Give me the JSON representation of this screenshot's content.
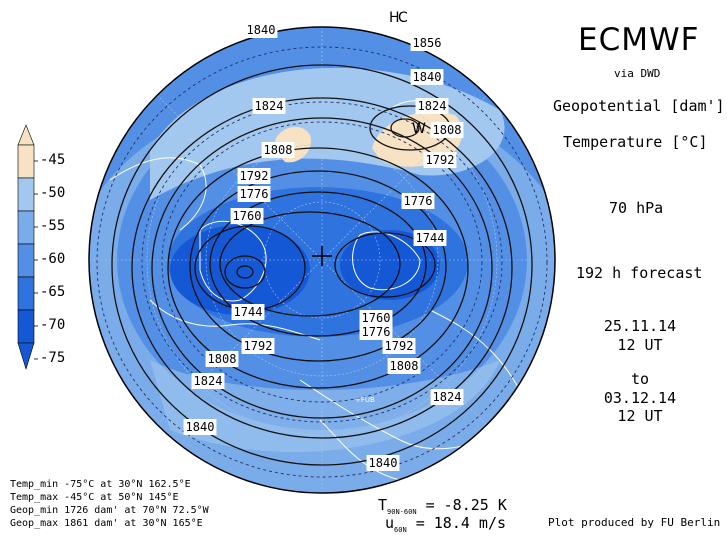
{
  "header": {
    "title": "ECMWF",
    "source": "via DWD",
    "field1": "Geopotential [dam']",
    "field2": "Temperature [°C]",
    "level": "70 hPa",
    "forecast": "192 h forecast",
    "init_date": "25.11.14",
    "init_time": "12 UT",
    "to": "to",
    "valid_date": "03.12.14",
    "valid_time": "12 UT"
  },
  "colorbar": {
    "ticks": [
      "-45",
      "-50",
      "-55",
      "-60",
      "-65",
      "-70",
      "-75"
    ],
    "colors": [
      "#f7e2c4",
      "#cfe3f6",
      "#a3c8ef",
      "#7bacea",
      "#5390e5",
      "#2f73de",
      "#1558d6"
    ]
  },
  "stats": [
    "Temp_min -75°C at 30°N 162.5°E",
    "Temp_max -45°C at 50°N 145°E",
    "Geop_min 1726 dam' at 70°N 72.5°W",
    "Geop_max 1861 dam' at 30°N 165°E"
  ],
  "means": {
    "t_label": "T",
    "t_sub": "90N-60N",
    "t_value": " = -8.25 K",
    "u_label": "u",
    "u_sub": "60N",
    "u_value": " = 18.4 m/s"
  },
  "credit": "Plot produced by FU Berlin",
  "map": {
    "contour_labels": [
      "1840",
      "1856",
      "1840",
      "1824",
      "1824",
      "1808",
      "1808",
      "1792",
      "1792",
      "1776",
      "1776",
      "1760",
      "1744",
      "1744",
      "1760",
      "1776",
      "1792",
      "1792",
      "1808",
      "1808",
      "1824",
      "1824",
      "1840",
      "1840"
    ],
    "high_marker": "H",
    "high_marker_small": "C",
    "low_marker": "W",
    "station": "+FUB",
    "colors": {
      "ocean_base": "#2f73de",
      "land_line": "#ffffff",
      "contour": "#111111"
    }
  }
}
